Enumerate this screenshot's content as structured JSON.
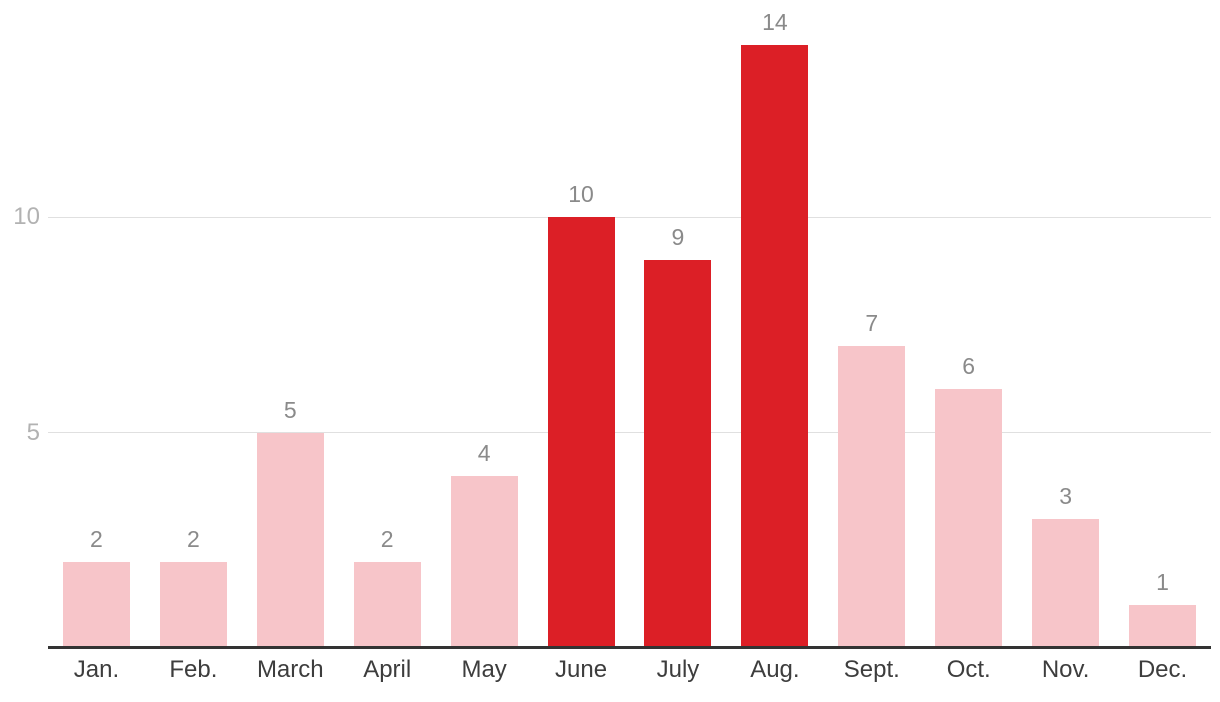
{
  "chart_data": {
    "type": "bar",
    "categories": [
      "Jan.",
      "Feb.",
      "March",
      "April",
      "May",
      "June",
      "July",
      "Aug.",
      "Sept.",
      "Oct.",
      "Nov.",
      "Dec."
    ],
    "values": [
      2,
      2,
      5,
      2,
      4,
      10,
      9,
      14,
      7,
      6,
      3,
      1
    ],
    "value_labels": [
      "2",
      "2",
      "5",
      "2",
      "4",
      "10",
      "9",
      "14",
      "7",
      "6",
      "3",
      "1"
    ],
    "highlighted_categories": [
      "June",
      "July",
      "Aug."
    ],
    "y_ticks": [
      "5",
      "10"
    ],
    "y_tick_values": [
      5,
      10
    ],
    "ylim": [
      0,
      15
    ],
    "grid": "horizontal lines at ticks only",
    "legend": "none",
    "colors": {
      "bar_default": "#f7c5c9",
      "bar_highlight": "#dc1f26",
      "grid_line": "#e0e0e0",
      "axis_line": "#333333",
      "value_label": "#8a8a8a",
      "tick_label": "#b2b2b2",
      "category_label": "#3d3d3d"
    }
  }
}
